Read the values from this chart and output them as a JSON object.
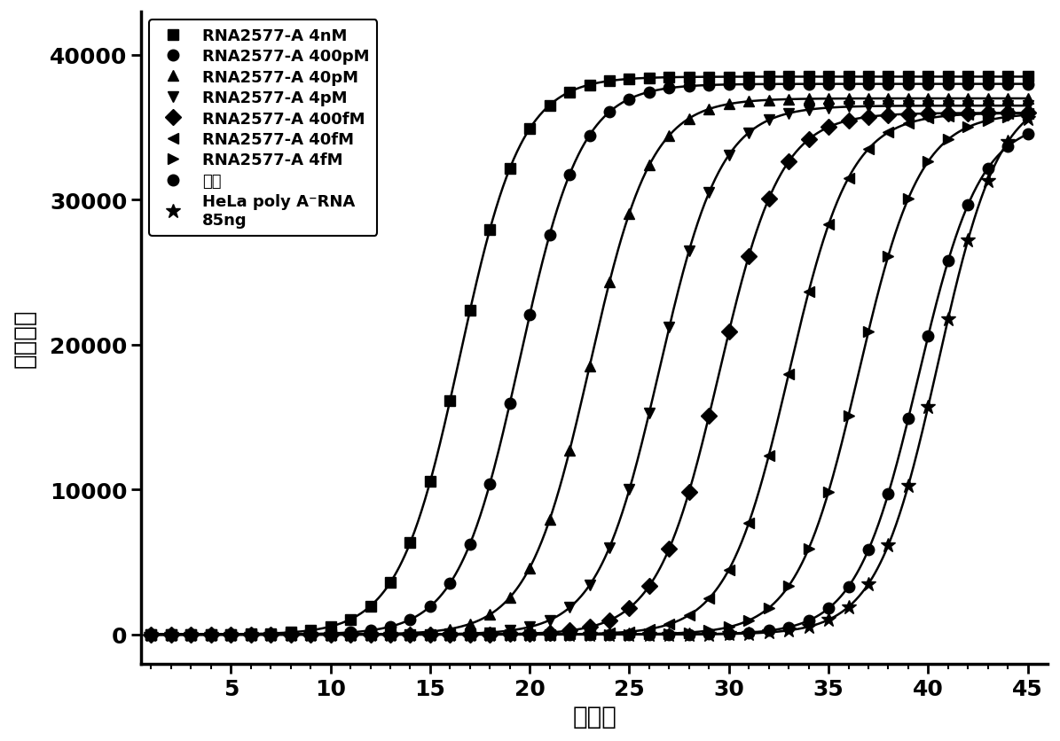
{
  "series": [
    {
      "label": "RNA2577-A 4nM",
      "marker": "s",
      "midpoint": 16.5,
      "plateau": 38500,
      "steepness": 0.65
    },
    {
      "label": "RNA2577-A 400pM",
      "marker": "o",
      "midpoint": 19.5,
      "plateau": 38000,
      "steepness": 0.65
    },
    {
      "label": "RNA2577-A 40pM",
      "marker": "^",
      "midpoint": 23.0,
      "plateau": 37000,
      "steepness": 0.65
    },
    {
      "label": "RNA2577-A 4pM",
      "marker": "v",
      "midpoint": 26.5,
      "plateau": 36500,
      "steepness": 0.65
    },
    {
      "label": "RNA2577-A 400fM",
      "marker": "D",
      "midpoint": 29.5,
      "plateau": 36000,
      "steepness": 0.65
    },
    {
      "label": "RNA2577-A 40fM",
      "marker": "<",
      "midpoint": 33.0,
      "plateau": 36000,
      "steepness": 0.65
    },
    {
      "label": "RNA2577-A 4fM",
      "marker": ">",
      "midpoint": 36.5,
      "plateau": 36000,
      "steepness": 0.65
    },
    {
      "label": "空白",
      "marker": "o",
      "midpoint": 39.5,
      "plateau": 35500,
      "steepness": 0.65
    },
    {
      "label": "HeLa poly A⁻RNA\n85ng",
      "marker": "*",
      "midpoint": 40.5,
      "plateau": 37500,
      "steepness": 0.65
    }
  ],
  "x_min": 1,
  "x_max": 45,
  "y_min": -2000,
  "y_max": 43000,
  "xlabel": "循环数",
  "ylabel": "荧光强度",
  "line_color": "#000000",
  "background_color": "#ffffff",
  "xlabel_fontsize": 20,
  "ylabel_fontsize": 20,
  "tick_fontsize": 18,
  "legend_fontsize": 13
}
